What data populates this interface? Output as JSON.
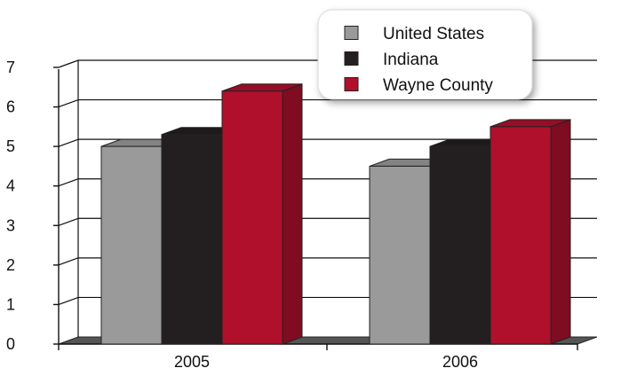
{
  "chart_data": {
    "type": "bar",
    "categories": [
      "2005",
      "2006"
    ],
    "series": [
      {
        "name": "United States",
        "values": [
          5.0,
          4.5
        ],
        "color": "#9a9a9a"
      },
      {
        "name": "Indiana",
        "values": [
          5.3,
          5.0
        ],
        "color": "#231f20"
      },
      {
        "name": "Wayne County",
        "values": [
          6.4,
          5.5
        ],
        "color": "#b0102c"
      }
    ],
    "ylim": [
      0,
      7
    ],
    "yticks": [
      "0",
      "1",
      "2",
      "3",
      "4",
      "5",
      "6",
      "7"
    ],
    "grid": true,
    "three_d": true,
    "legend_position": "top-right",
    "title": "",
    "xlabel": "",
    "ylabel": ""
  }
}
